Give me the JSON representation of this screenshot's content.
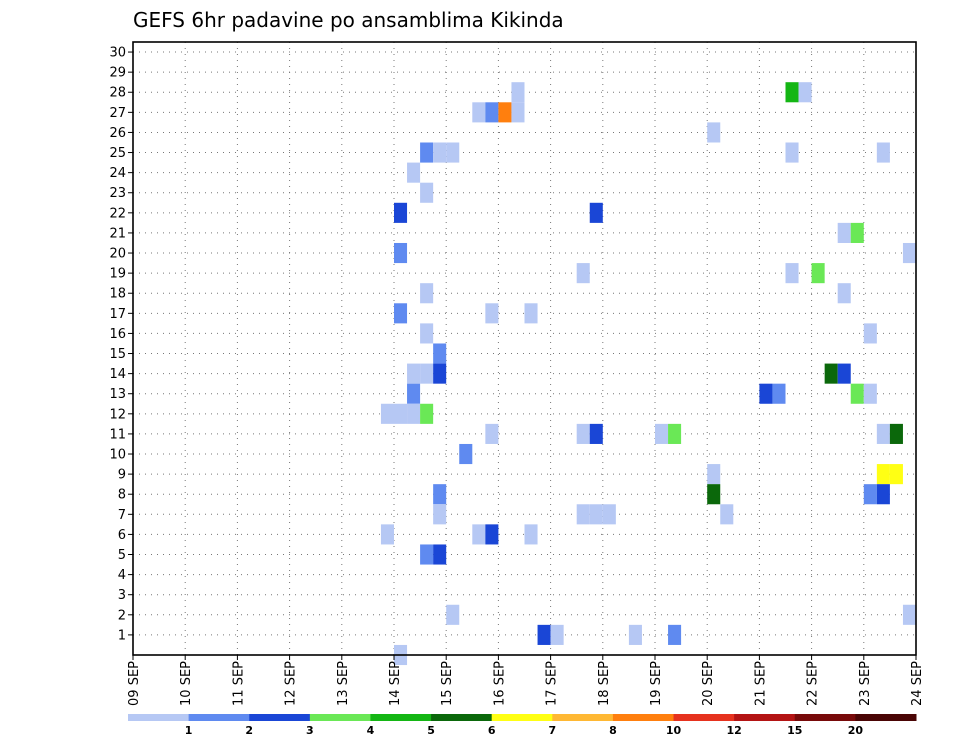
{
  "chart_data": {
    "type": "heatmap",
    "title": "GEFS 6hr padavine po ansamblima Kikinda",
    "xlabel": "",
    "ylabel": "",
    "x_ticks": [
      "09 SEP",
      "10 SEP",
      "11 SEP",
      "12 SEP",
      "13 SEP",
      "14 SEP",
      "15 SEP",
      "16 SEP",
      "17 SEP",
      "18 SEP",
      "19 SEP",
      "20 SEP",
      "21 SEP",
      "22 SEP",
      "23 SEP",
      "24 SEP"
    ],
    "xlim_days": [
      0,
      15
    ],
    "step_hours": 6,
    "y_ticks": [
      1,
      2,
      3,
      4,
      5,
      6,
      7,
      8,
      9,
      10,
      11,
      12,
      13,
      14,
      15,
      16,
      17,
      18,
      19,
      20,
      21,
      22,
      23,
      24,
      25,
      26,
      27,
      28,
      29,
      30
    ],
    "ylim": [
      0,
      30
    ],
    "grid": true,
    "colorbar": {
      "labels": [
        "1",
        "2",
        "3",
        "4",
        "5",
        "6",
        "7",
        "8",
        "10",
        "12",
        "15",
        "20"
      ],
      "colors": [
        "#b6c8f4",
        "#5f8af0",
        "#1a46d6",
        "#6ae856",
        "#14b614",
        "#0b680b",
        "#ffff14",
        "#ffb833",
        "#ff7f0e",
        "#e6321e",
        "#b41414",
        "#780a0a",
        "#4a0505"
      ]
    },
    "cells": [
      {
        "member": 28,
        "slot": 50,
        "level": 4
      },
      {
        "member": 28,
        "slot": 51,
        "level": 0
      },
      {
        "member": 28,
        "slot": 29,
        "level": 0
      },
      {
        "member": 27,
        "slot": 26,
        "level": 0
      },
      {
        "member": 27,
        "slot": 27,
        "level": 1
      },
      {
        "member": 27,
        "slot": 28,
        "level": 8
      },
      {
        "member": 27,
        "slot": 29,
        "level": 0
      },
      {
        "member": 26,
        "slot": 44,
        "level": 0
      },
      {
        "member": 25,
        "slot": 22,
        "level": 1
      },
      {
        "member": 25,
        "slot": 23,
        "level": 0
      },
      {
        "member": 25,
        "slot": 24,
        "level": 0
      },
      {
        "member": 25,
        "slot": 50,
        "level": 0
      },
      {
        "member": 25,
        "slot": 57,
        "level": 0
      },
      {
        "member": 24,
        "slot": 21,
        "level": 0
      },
      {
        "member": 23,
        "slot": 22,
        "level": 0
      },
      {
        "member": 22,
        "slot": 20,
        "level": 2
      },
      {
        "member": 22,
        "slot": 35,
        "level": 2
      },
      {
        "member": 21,
        "slot": 54,
        "level": 0
      },
      {
        "member": 21,
        "slot": 55,
        "level": 3
      },
      {
        "member": 20,
        "slot": 20,
        "level": 1
      },
      {
        "member": 20,
        "slot": 59,
        "level": 0
      },
      {
        "member": 19,
        "slot": 50,
        "level": 0
      },
      {
        "member": 19,
        "slot": 34,
        "level": 0
      },
      {
        "member": 19,
        "slot": 52,
        "level": 3
      },
      {
        "member": 18,
        "slot": 22,
        "level": 0
      },
      {
        "member": 18,
        "slot": 54,
        "level": 0
      },
      {
        "member": 17,
        "slot": 20,
        "level": 1
      },
      {
        "member": 17,
        "slot": 27,
        "level": 0
      },
      {
        "member": 17,
        "slot": 30,
        "level": 0
      },
      {
        "member": 16,
        "slot": 22,
        "level": 0
      },
      {
        "member": 16,
        "slot": 56,
        "level": 0
      },
      {
        "member": 15,
        "slot": 23,
        "level": 1
      },
      {
        "member": 14,
        "slot": 21,
        "level": 0
      },
      {
        "member": 14,
        "slot": 22,
        "level": 0
      },
      {
        "member": 14,
        "slot": 23,
        "level": 2
      },
      {
        "member": 14,
        "slot": 53,
        "level": 5
      },
      {
        "member": 14,
        "slot": 54,
        "level": 2
      },
      {
        "member": 13,
        "slot": 21,
        "level": 1
      },
      {
        "member": 13,
        "slot": 48,
        "level": 2
      },
      {
        "member": 13,
        "slot": 49,
        "level": 1
      },
      {
        "member": 13,
        "slot": 55,
        "level": 3
      },
      {
        "member": 13,
        "slot": 56,
        "level": 0
      },
      {
        "member": 12,
        "slot": 19,
        "level": 0
      },
      {
        "member": 12,
        "slot": 20,
        "level": 0
      },
      {
        "member": 12,
        "slot": 21,
        "level": 0
      },
      {
        "member": 12,
        "slot": 22,
        "level": 3
      },
      {
        "member": 11,
        "slot": 27,
        "level": 0
      },
      {
        "member": 11,
        "slot": 34,
        "level": 0
      },
      {
        "member": 11,
        "slot": 35,
        "level": 2
      },
      {
        "member": 11,
        "slot": 40,
        "level": 0
      },
      {
        "member": 11,
        "slot": 41,
        "level": 3
      },
      {
        "member": 11,
        "slot": 57,
        "level": 0
      },
      {
        "member": 11,
        "slot": 58,
        "level": 5
      },
      {
        "member": 10,
        "slot": 25,
        "level": 1
      },
      {
        "member": 9,
        "slot": 44,
        "level": 0
      },
      {
        "member": 9,
        "slot": 57,
        "level": 6
      },
      {
        "member": 9,
        "slot": 58,
        "level": 6
      },
      {
        "member": 8,
        "slot": 23,
        "level": 1
      },
      {
        "member": 8,
        "slot": 44,
        "level": 5
      },
      {
        "member": 8,
        "slot": 56,
        "level": 1
      },
      {
        "member": 8,
        "slot": 57,
        "level": 2
      },
      {
        "member": 7,
        "slot": 23,
        "level": 0
      },
      {
        "member": 7,
        "slot": 34,
        "level": 0
      },
      {
        "member": 7,
        "slot": 35,
        "level": 0
      },
      {
        "member": 7,
        "slot": 36,
        "level": 0
      },
      {
        "member": 7,
        "slot": 45,
        "level": 0
      },
      {
        "member": 6,
        "slot": 19,
        "level": 0
      },
      {
        "member": 6,
        "slot": 26,
        "level": 0
      },
      {
        "member": 6,
        "slot": 27,
        "level": 2
      },
      {
        "member": 6,
        "slot": 30,
        "level": 0
      },
      {
        "member": 5,
        "slot": 22,
        "level": 1
      },
      {
        "member": 5,
        "slot": 23,
        "level": 2
      },
      {
        "member": 2,
        "slot": 24,
        "level": 0
      },
      {
        "member": 2,
        "slot": 59,
        "level": 0
      },
      {
        "member": 1,
        "slot": 31,
        "level": 2
      },
      {
        "member": 1,
        "slot": 32,
        "level": 0
      },
      {
        "member": 1,
        "slot": 38,
        "level": 0
      },
      {
        "member": 1,
        "slot": 41,
        "level": 1
      },
      {
        "member": 0,
        "slot": 20,
        "level": 0
      }
    ]
  }
}
